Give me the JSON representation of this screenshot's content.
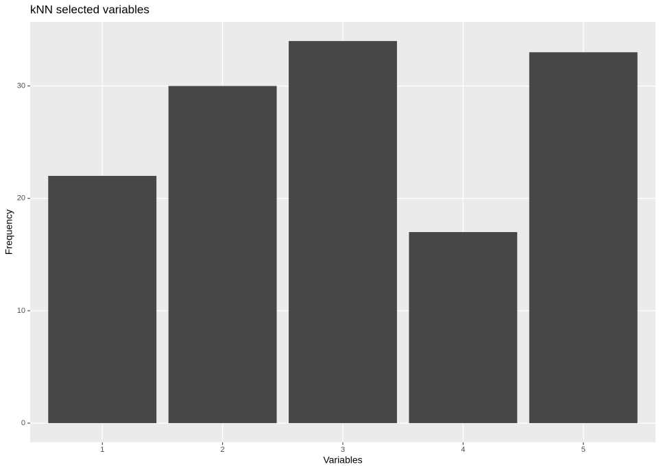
{
  "chart_data": {
    "type": "bar",
    "title": "kNN selected variables",
    "x_label": "Variables",
    "y_label": "Frequency",
    "categories": [
      "1",
      "2",
      "3",
      "4",
      "5"
    ],
    "values": [
      22,
      30,
      34,
      17,
      33
    ],
    "color": "#474747",
    "ylim": [
      -1.7,
      35.7
    ],
    "yticks": [
      0,
      10,
      20,
      30
    ],
    "grid": true
  }
}
